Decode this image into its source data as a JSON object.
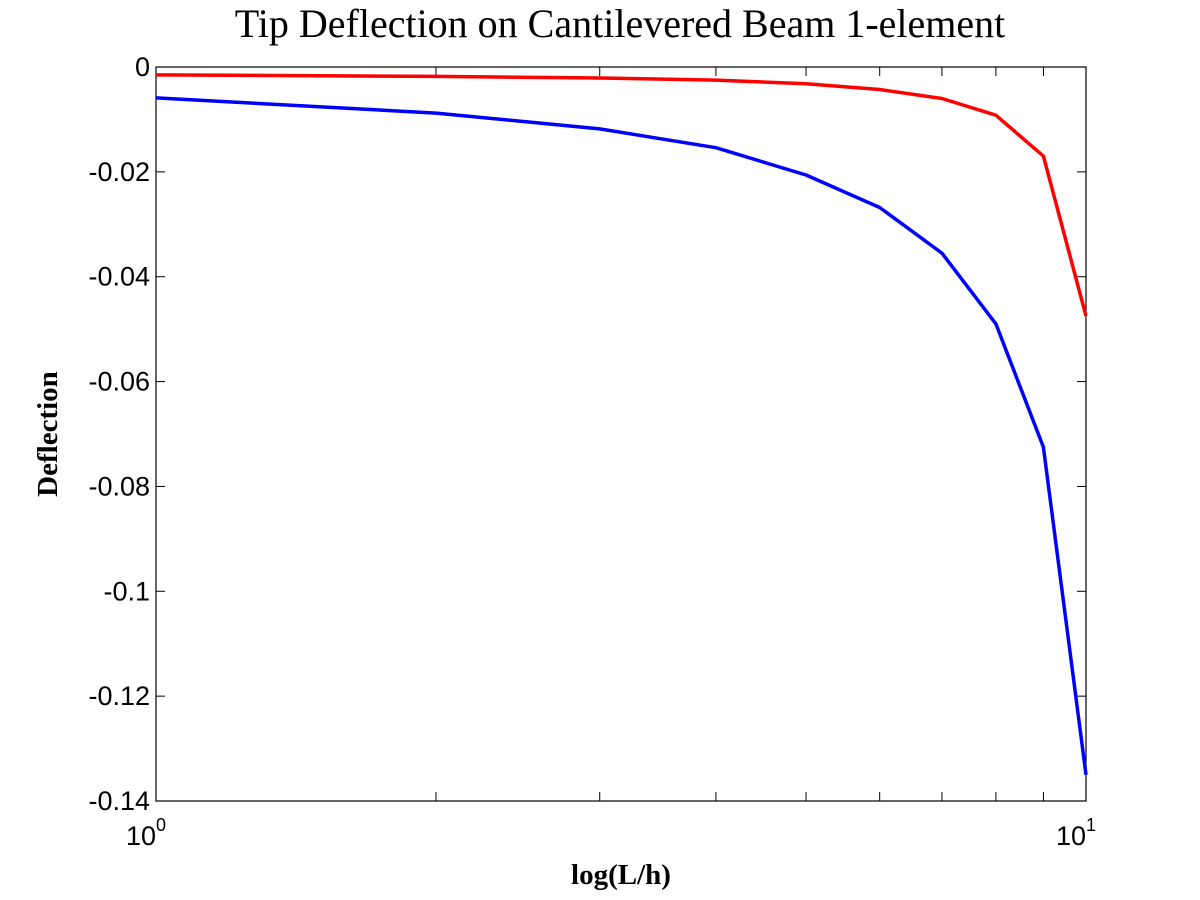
{
  "chart_data": {
    "type": "line",
    "title": "Tip Deflection on Cantilevered Beam 1-element",
    "xlabel": "log(L/h)",
    "ylabel": "Deflection",
    "xscale": "log",
    "xlim": [
      1,
      10
    ],
    "ylim": [
      -0.14,
      0
    ],
    "grid": false,
    "x_ticks": [
      {
        "value": 1,
        "base": "10",
        "exponent": "0"
      },
      {
        "value": 10,
        "base": "10",
        "exponent": "1"
      }
    ],
    "x_minor_ticks": [
      2,
      3,
      4,
      5,
      6,
      7,
      8,
      9
    ],
    "y_ticks": [
      {
        "value": 0,
        "label": "0"
      },
      {
        "value": -0.02,
        "label": "-0.02"
      },
      {
        "value": -0.04,
        "label": "-0.04"
      },
      {
        "value": -0.06,
        "label": "-0.06"
      },
      {
        "value": -0.08,
        "label": "-0.08"
      },
      {
        "value": -0.1,
        "label": "-0.1"
      },
      {
        "value": -0.12,
        "label": "-0.12"
      },
      {
        "value": -0.14,
        "label": "-0.14"
      }
    ],
    "x": [
      1,
      2,
      3,
      4,
      5,
      6,
      7,
      8,
      9,
      10
    ],
    "series": [
      {
        "color": "#ff0000",
        "values": [
          -0.0015,
          -0.0018,
          -0.0021,
          -0.0025,
          -0.0032,
          -0.0043,
          -0.006,
          -0.0092,
          -0.017,
          -0.0475
        ]
      },
      {
        "color": "#0000ff",
        "values": [
          -0.0059,
          -0.0088,
          -0.0118,
          -0.0154,
          -0.0206,
          -0.0268,
          -0.0355,
          -0.049,
          -0.0725,
          -0.135
        ]
      }
    ]
  }
}
